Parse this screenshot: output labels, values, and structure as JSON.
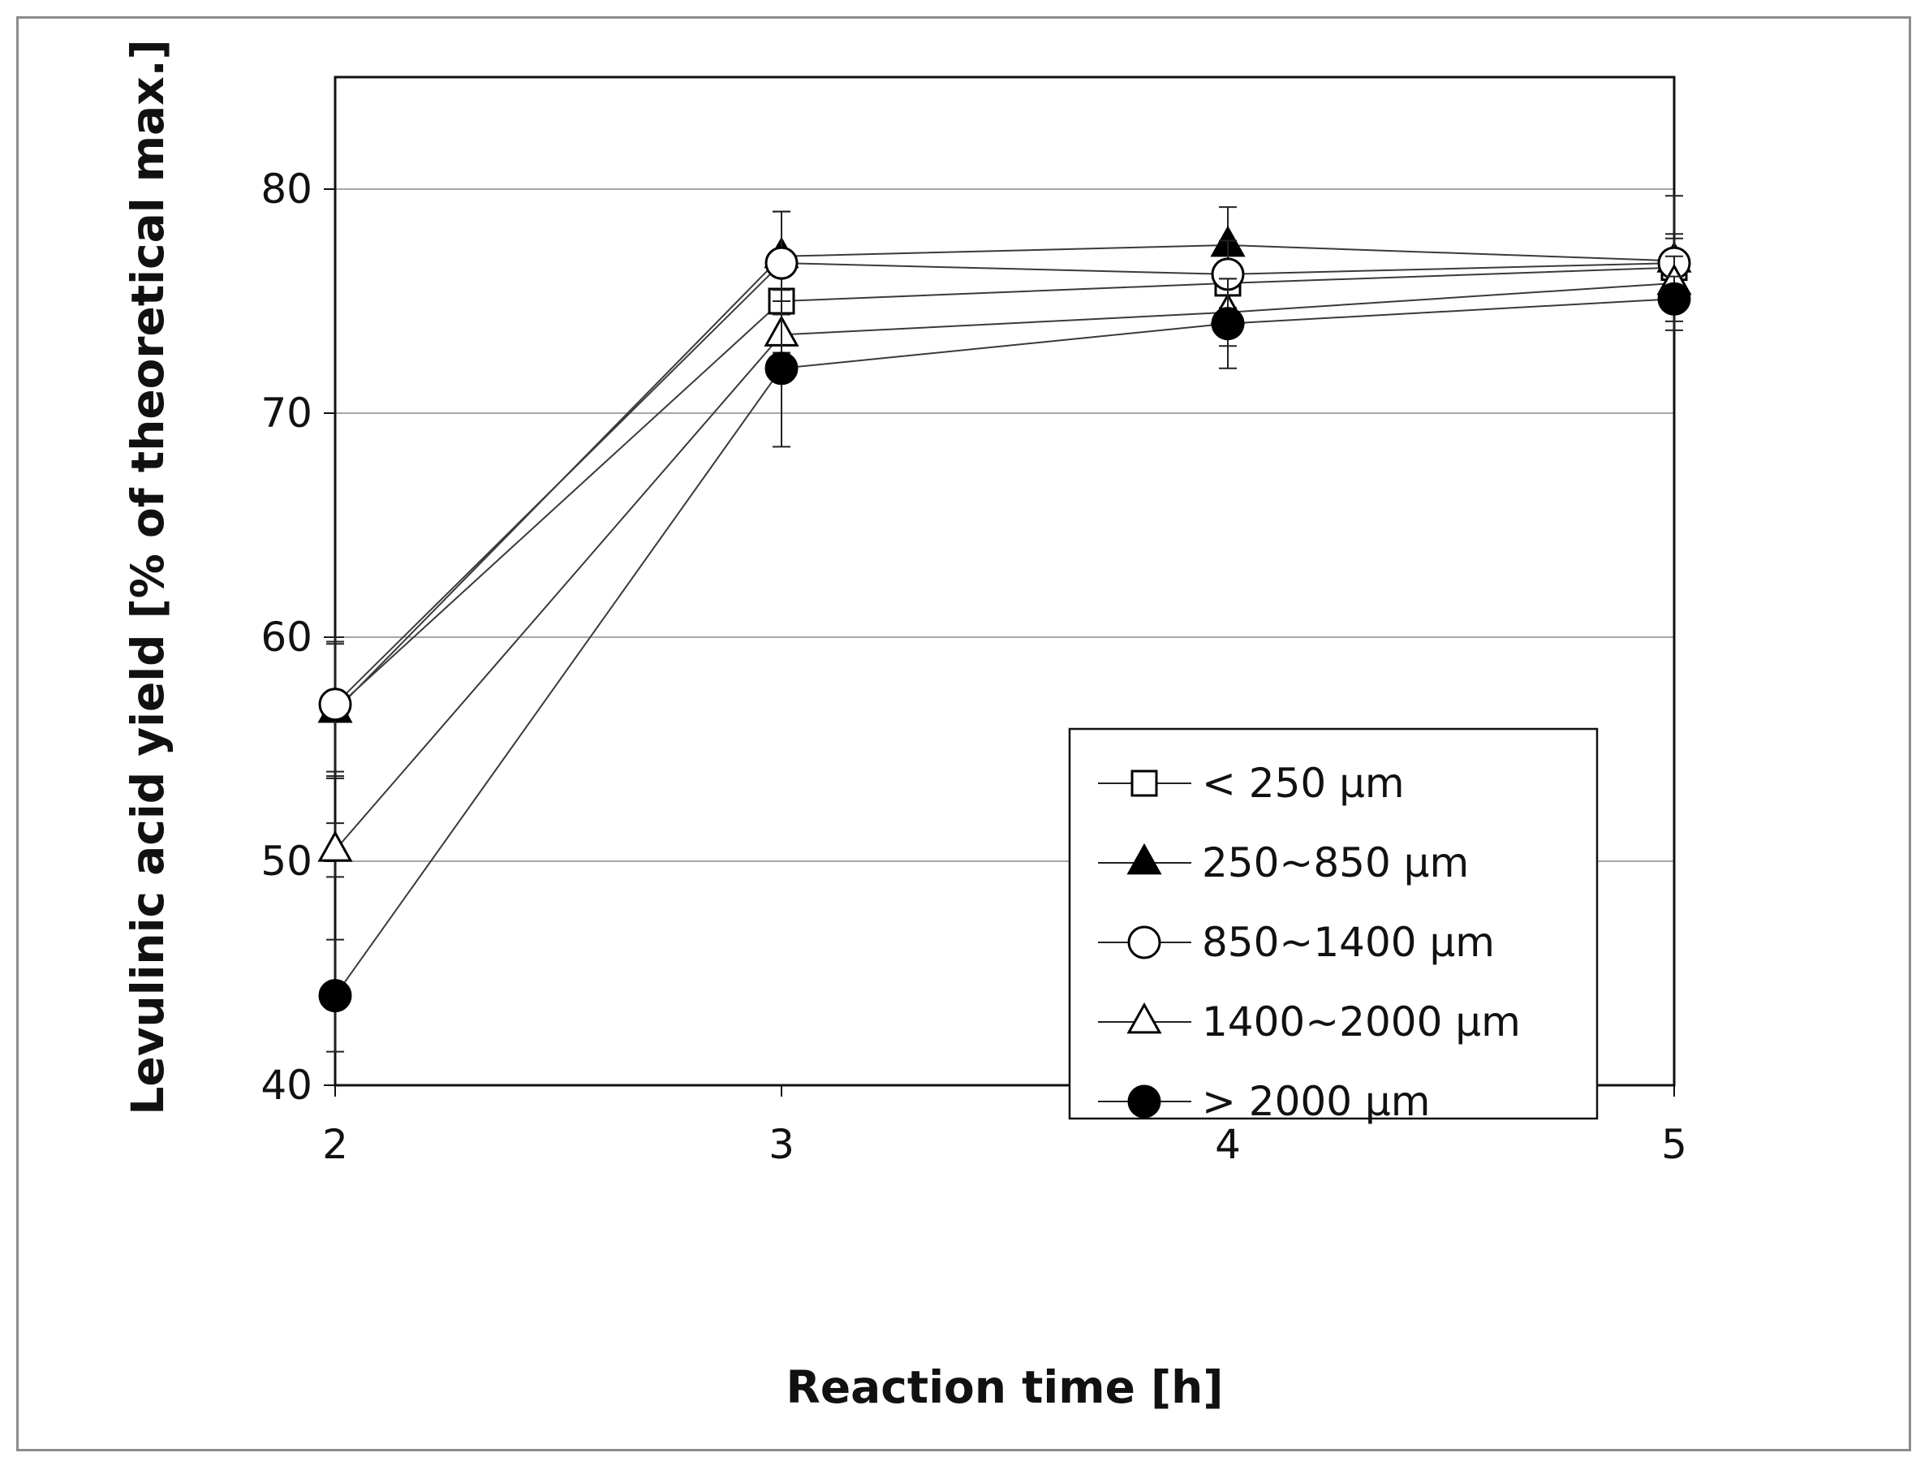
{
  "chart_data": {
    "type": "line",
    "title": "",
    "xlabel": "Reaction time [h]",
    "ylabel": "Levulinic acid yield [% of theoretical max.]",
    "x": [
      2,
      3,
      4,
      5
    ],
    "xlim": [
      2,
      5
    ],
    "ylim": [
      40,
      85
    ],
    "xticks": [
      2,
      3,
      4,
      5
    ],
    "yticks": [
      40,
      50,
      60,
      70,
      80
    ],
    "grid": "horizontal",
    "legend_position": "lower-right",
    "series": [
      {
        "name": "< 250  μm",
        "marker": "square-open",
        "values": [
          56.8,
          75.0,
          75.8,
          76.5
        ],
        "errors": [
          3.0,
          2.3,
          1.5,
          1.5
        ]
      },
      {
        "name": "250~850  μm",
        "marker": "triangle-filled",
        "values": [
          56.7,
          77.0,
          77.5,
          76.8
        ],
        "errors": [
          3.0,
          2.0,
          1.7,
          1.0
        ]
      },
      {
        "name": "850~1400 μm",
        "marker": "circle-open",
        "values": [
          57.0,
          76.7,
          76.2,
          76.7
        ],
        "errors": [
          3.0,
          2.3,
          1.5,
          3.0
        ]
      },
      {
        "name": "1400~2000 μm",
        "marker": "triangle-open",
        "values": [
          50.5,
          73.5,
          74.5,
          75.8
        ],
        "errors": [
          1.2,
          1.5,
          1.5,
          1.2
        ]
      },
      {
        "name": "> 2000  μm",
        "marker": "circle-filled",
        "values": [
          44.0,
          72.0,
          74.0,
          75.1
        ],
        "errors": [
          2.5,
          3.5,
          2.0,
          1.0
        ]
      }
    ]
  }
}
